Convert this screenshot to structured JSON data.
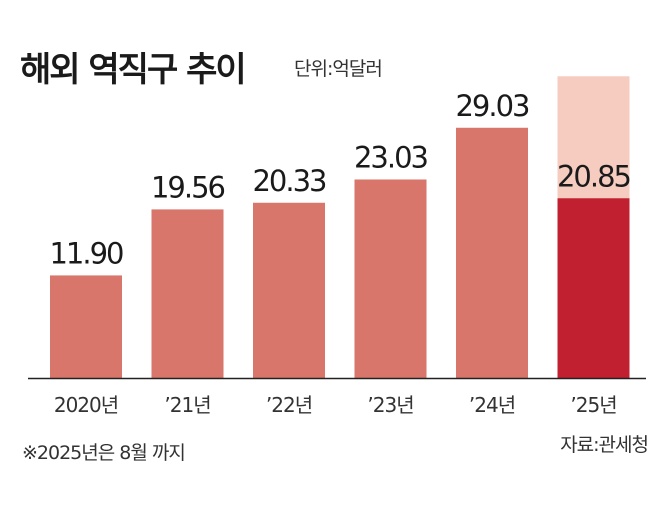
{
  "chart_data": {
    "type": "bar",
    "title": "해외 역직구 추이",
    "unit_label": "단위:억달러",
    "categories": [
      "2020년",
      "’21년",
      "’22년",
      "’23년",
      "’24년",
      "’25년"
    ],
    "values": [
      11.9,
      19.56,
      20.33,
      23.03,
      29.03,
      20.85
    ],
    "value_labels": [
      "11.90",
      "19.56",
      "20.33",
      "23.03",
      "29.03",
      "20.85"
    ],
    "partial_year_note": "※2025년은 8월 까지",
    "source": "자료:관세청",
    "ylim": [
      0,
      40
    ],
    "xlabel": "",
    "ylabel": "",
    "grid": false,
    "legend": "none"
  },
  "colors": {
    "bar": "#d8766b",
    "highlight_bar": "#c0202f",
    "highlight_bg": "#f6cbc0",
    "baseline": "#222222"
  }
}
